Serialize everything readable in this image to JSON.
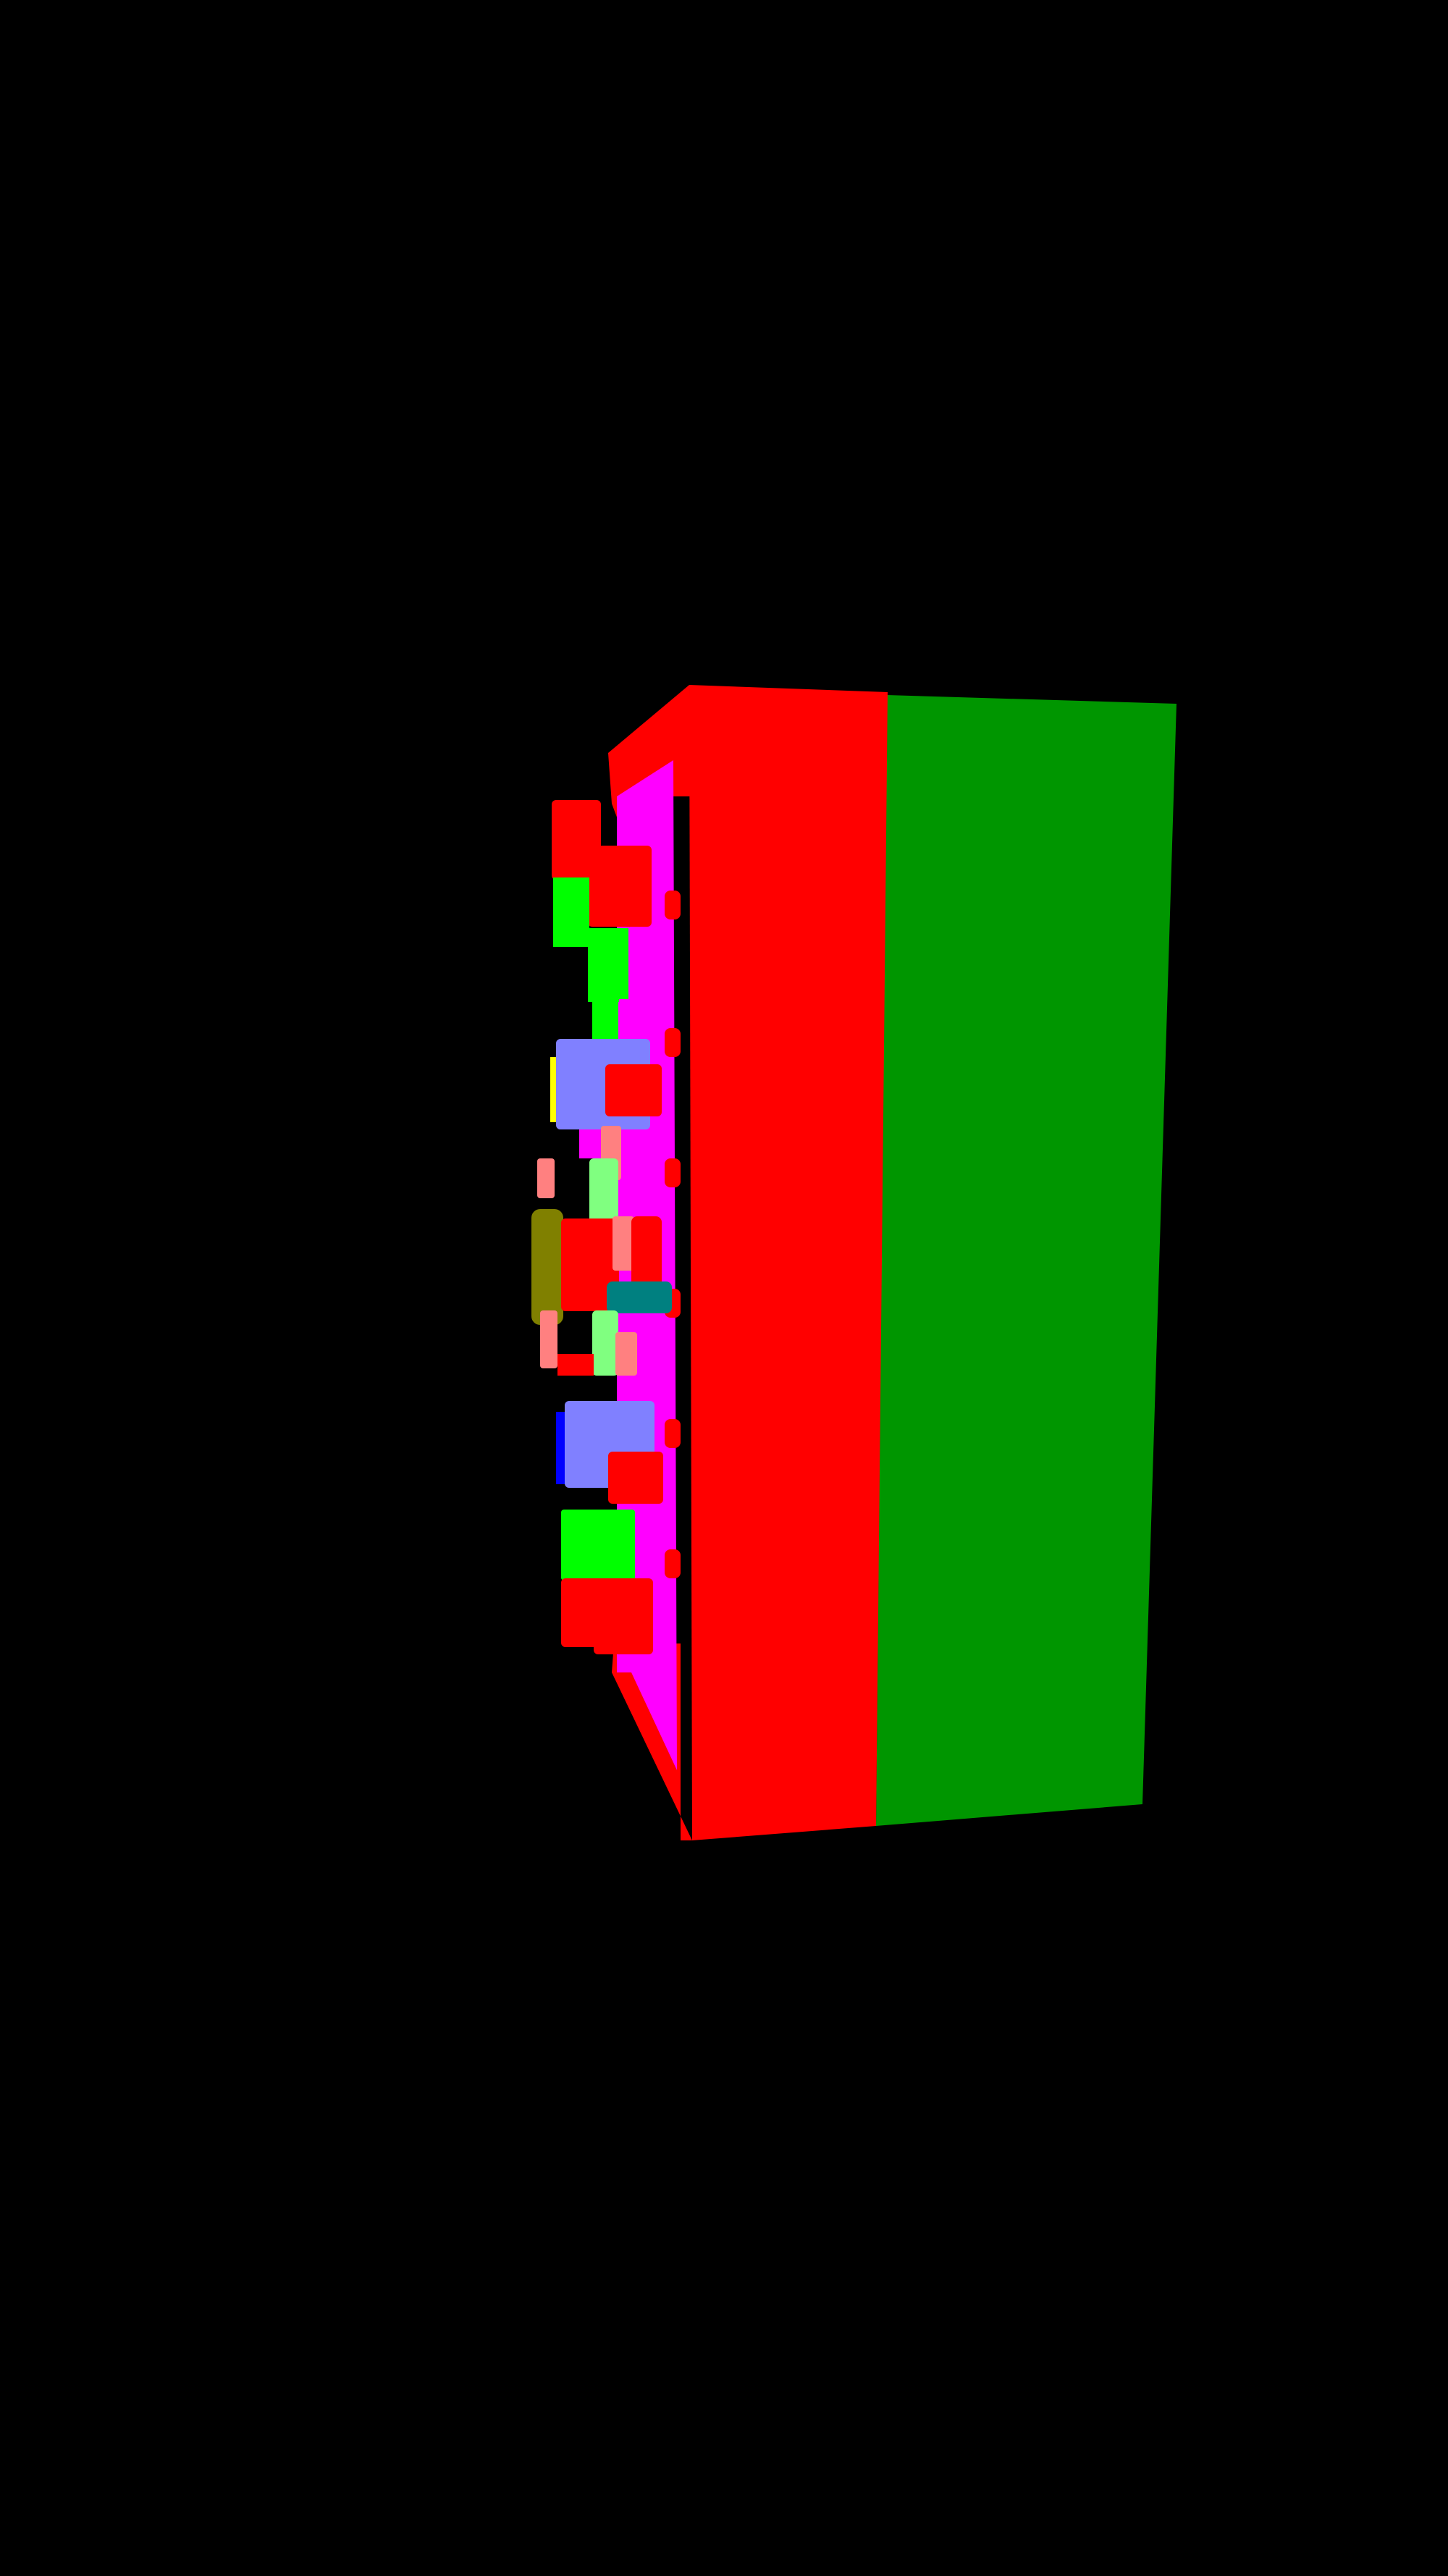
{
  "scene": {
    "background": "#000000",
    "parts": {
      "frame": "#ff0000",
      "back_panel": "#009600",
      "side_rail": "#ff00ff",
      "block_green": "#00ff00",
      "block_light_green": "#80ff80",
      "block_lavender": "#8080ff",
      "block_salmon": "#ff8080",
      "block_olive": "#808000",
      "block_teal": "#008080",
      "block_blue": "#0000ff",
      "block_yellow": "#ffff00"
    }
  }
}
